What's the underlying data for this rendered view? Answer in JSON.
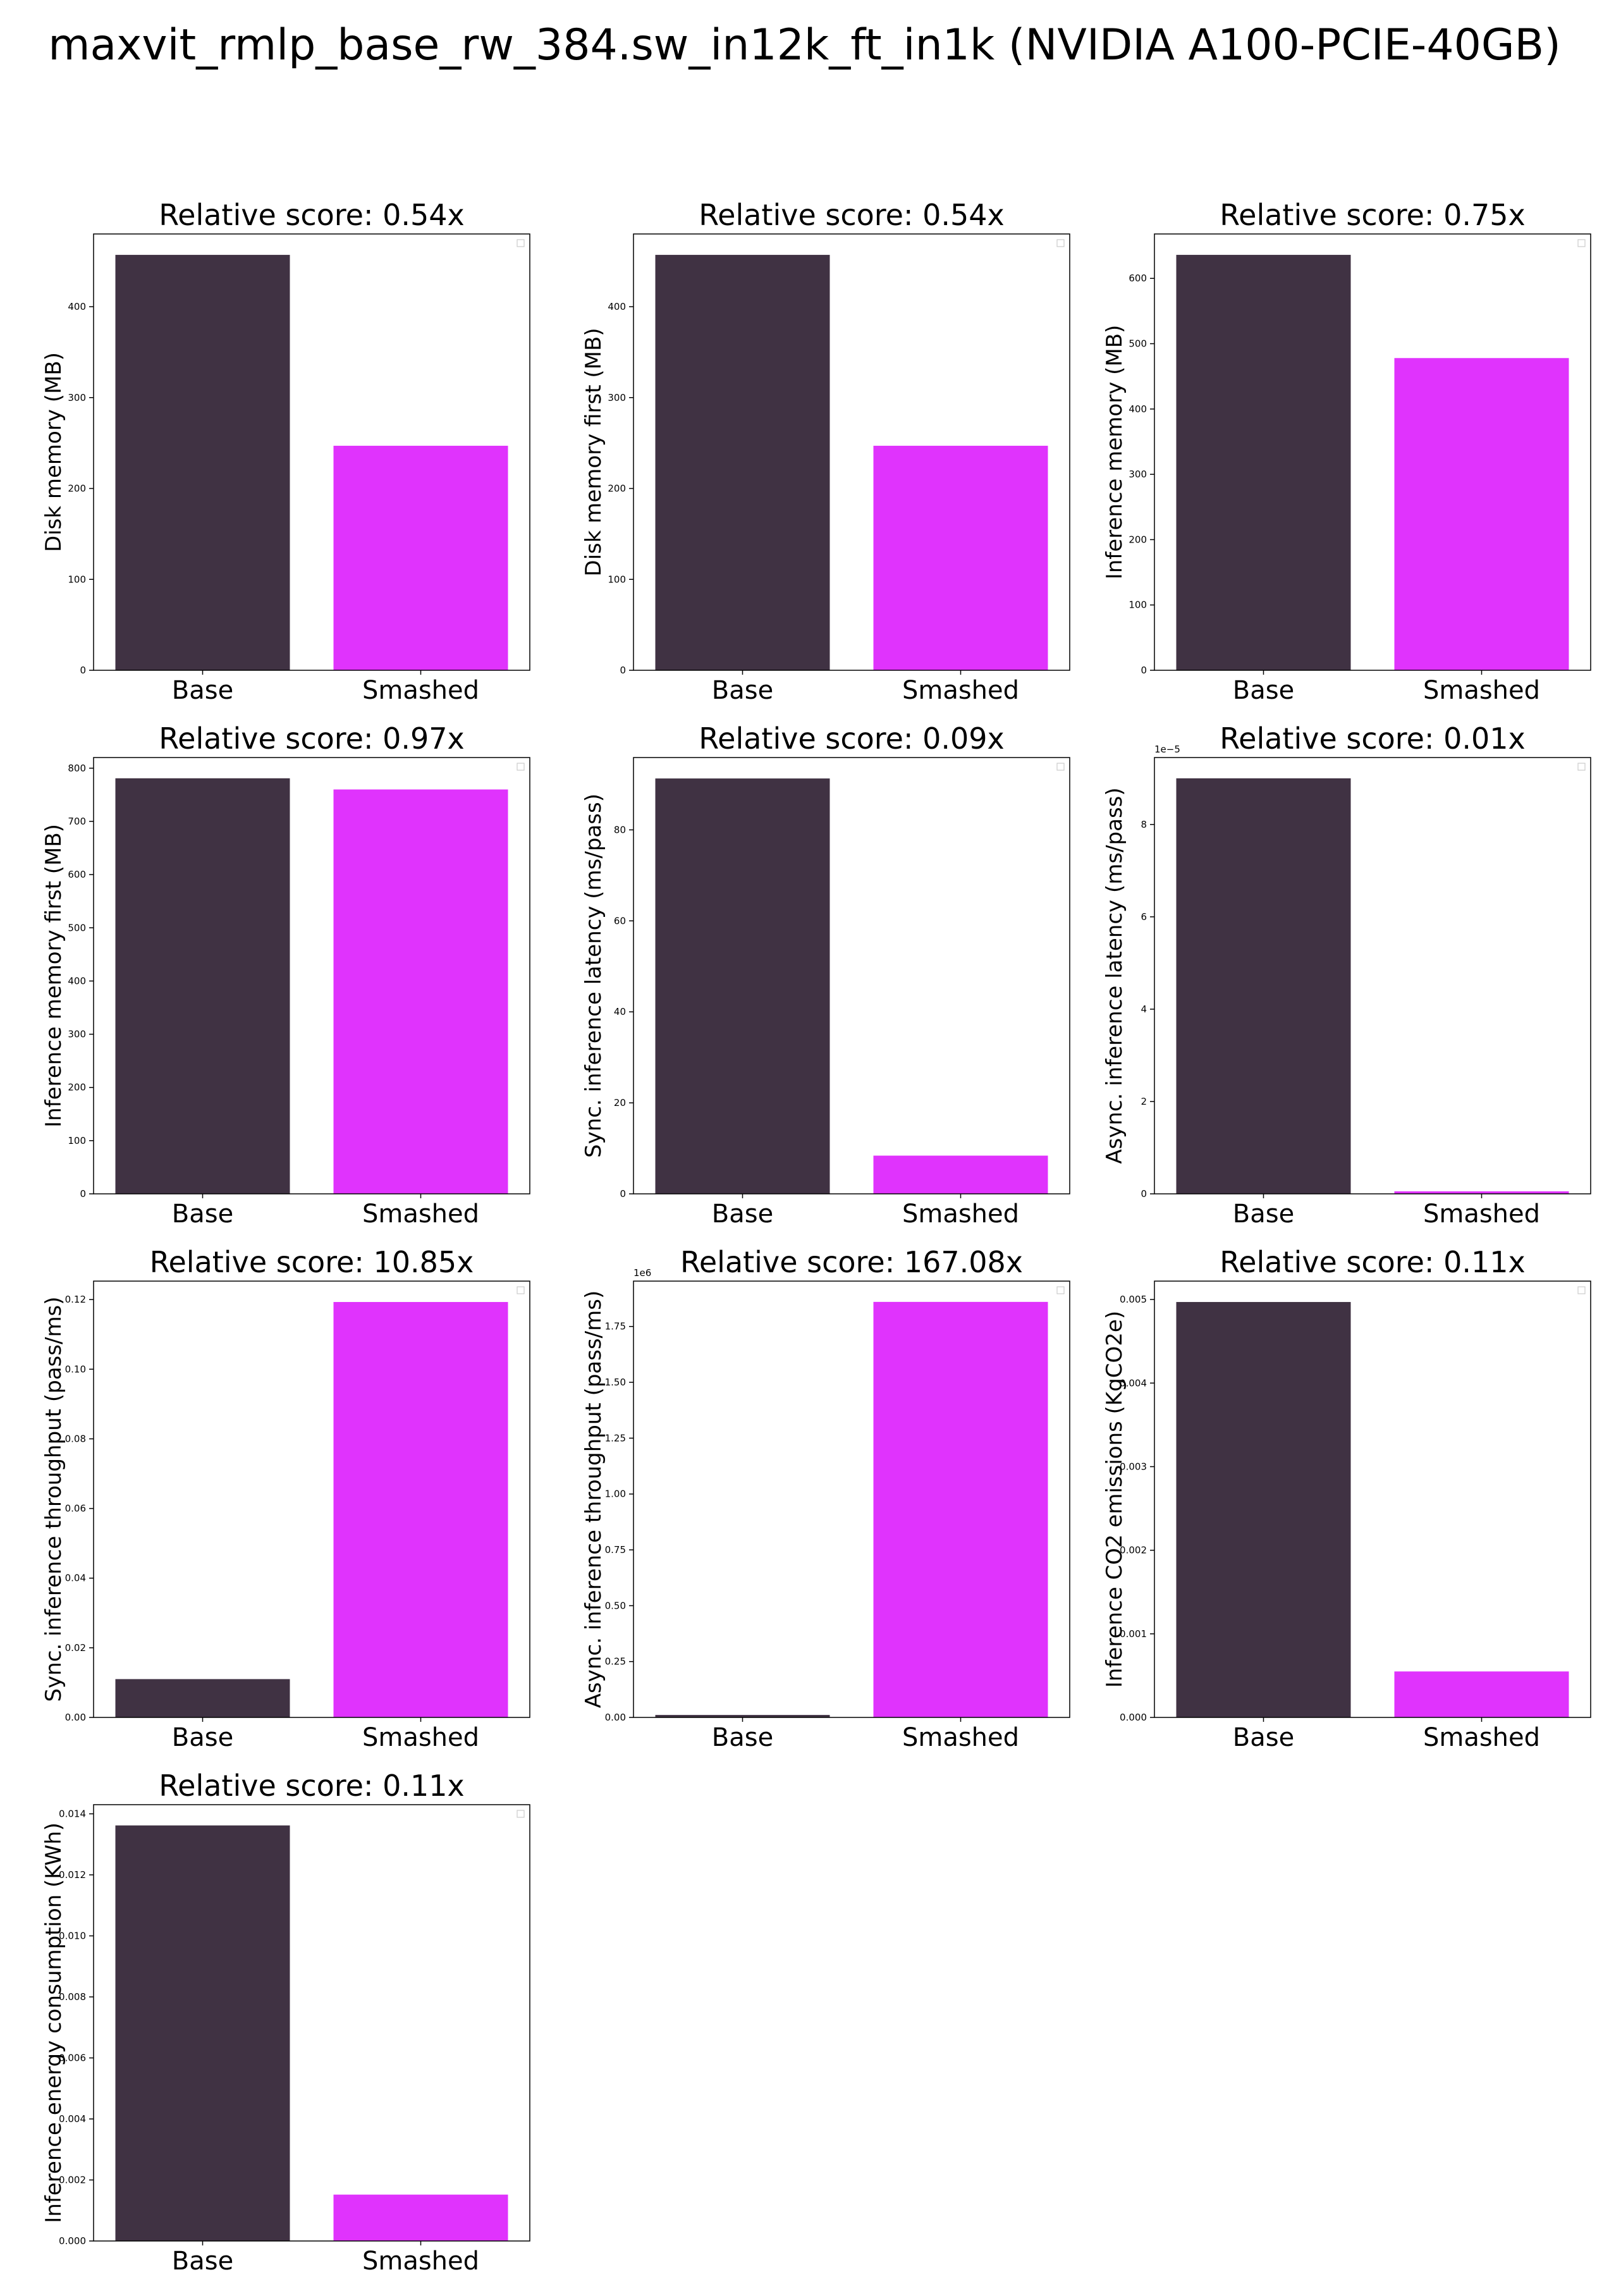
{
  "figure": {
    "title": "maxvit_rmlp_base_rw_384.sw_in12k_ft_in1k (NVIDIA A100-PCIE-40GB)"
  },
  "colors": {
    "base": "#403243",
    "smashed": "#e033fd",
    "axis": "#000000"
  },
  "chart_data": [
    {
      "type": "bar",
      "title": "Relative score: 0.54x",
      "categories": [
        "Base",
        "Smashed"
      ],
      "values": [
        457,
        247
      ],
      "xlabel": "",
      "ylabel": "Disk memory (MB)",
      "ylim": [
        0,
        480
      ],
      "yticks": [
        0,
        100,
        200,
        300,
        400
      ],
      "ytick_labels": [
        "0",
        "100",
        "200",
        "300",
        "400"
      ],
      "offset_label": ""
    },
    {
      "type": "bar",
      "title": "Relative score: 0.54x",
      "categories": [
        "Base",
        "Smashed"
      ],
      "values": [
        457,
        247
      ],
      "xlabel": "",
      "ylabel": "Disk memory first (MB)",
      "ylim": [
        0,
        480
      ],
      "yticks": [
        0,
        100,
        200,
        300,
        400
      ],
      "ytick_labels": [
        "0",
        "100",
        "200",
        "300",
        "400"
      ],
      "offset_label": ""
    },
    {
      "type": "bar",
      "title": "Relative score: 0.75x",
      "categories": [
        "Base",
        "Smashed"
      ],
      "values": [
        636,
        478
      ],
      "xlabel": "",
      "ylabel": "Inference memory (MB)",
      "ylim": [
        0,
        668
      ],
      "yticks": [
        0,
        100,
        200,
        300,
        400,
        500,
        600
      ],
      "ytick_labels": [
        "0",
        "100",
        "200",
        "300",
        "400",
        "500",
        "600"
      ],
      "offset_label": ""
    },
    {
      "type": "bar",
      "title": "Relative score: 0.97x",
      "categories": [
        "Base",
        "Smashed"
      ],
      "values": [
        781,
        760
      ],
      "xlabel": "",
      "ylabel": "Inference memory first (MB)",
      "ylim": [
        0,
        820
      ],
      "yticks": [
        0,
        100,
        200,
        300,
        400,
        500,
        600,
        700,
        800
      ],
      "ytick_labels": [
        "0",
        "100",
        "200",
        "300",
        "400",
        "500",
        "600",
        "700",
        "800"
      ],
      "offset_label": ""
    },
    {
      "type": "bar",
      "title": "Relative score: 0.09x",
      "categories": [
        "Base",
        "Smashed"
      ],
      "values": [
        91.3,
        8.4
      ],
      "xlabel": "",
      "ylabel": "Sync. inference latency (ms/pass)",
      "ylim": [
        0,
        95.9
      ],
      "yticks": [
        0,
        20,
        40,
        60,
        80
      ],
      "ytick_labels": [
        "0",
        "20",
        "40",
        "60",
        "80"
      ],
      "offset_label": ""
    },
    {
      "type": "bar",
      "title": "Relative score: 0.01x",
      "categories": [
        "Base",
        "Smashed"
      ],
      "values": [
        9.0,
        0.054
      ],
      "xlabel": "",
      "ylabel": "Async. inference latency (ms/pass)",
      "ylim": [
        0,
        9.45
      ],
      "yticks": [
        0,
        2,
        4,
        6,
        8
      ],
      "ytick_labels": [
        "0",
        "2",
        "4",
        "6",
        "8"
      ],
      "offset_label": "1e−5"
    },
    {
      "type": "bar",
      "title": "Relative score: 10.85x",
      "categories": [
        "Base",
        "Smashed"
      ],
      "values": [
        0.011,
        0.1193
      ],
      "xlabel": "",
      "ylabel": "Sync. inference throughput (pass/ms)",
      "ylim": [
        0,
        0.1253
      ],
      "yticks": [
        0,
        0.02,
        0.04,
        0.06,
        0.08,
        0.1,
        0.12
      ],
      "ytick_labels": [
        "0.00",
        "0.02",
        "0.04",
        "0.06",
        "0.08",
        "0.10",
        "0.12"
      ],
      "offset_label": ""
    },
    {
      "type": "bar",
      "title": "Relative score: 167.08x",
      "categories": [
        "Base",
        "Smashed"
      ],
      "values": [
        0.011,
        1.86
      ],
      "xlabel": "",
      "ylabel": "Async. inference throughput (pass/ms)",
      "ylim": [
        0,
        1.953
      ],
      "yticks": [
        0,
        0.25,
        0.5,
        0.75,
        1.0,
        1.25,
        1.5,
        1.75
      ],
      "ytick_labels": [
        "0.00",
        "0.25",
        "0.50",
        "0.75",
        "1.00",
        "1.25",
        "1.50",
        "1.75"
      ],
      "offset_label": "1e6"
    },
    {
      "type": "bar",
      "title": "Relative score: 0.11x",
      "categories": [
        "Base",
        "Smashed"
      ],
      "values": [
        0.00497,
        0.00055
      ],
      "xlabel": "",
      "ylabel": "Inference CO2 emissions (KgCO2e)",
      "ylim": [
        0,
        0.00522
      ],
      "yticks": [
        0,
        0.001,
        0.002,
        0.003,
        0.004,
        0.005
      ],
      "ytick_labels": [
        "0.000",
        "0.001",
        "0.002",
        "0.003",
        "0.004",
        "0.005"
      ],
      "offset_label": ""
    },
    {
      "type": "bar",
      "title": "Relative score: 0.11x",
      "categories": [
        "Base",
        "Smashed"
      ],
      "values": [
        0.01362,
        0.00152
      ],
      "xlabel": "",
      "ylabel": "Inference energy consumption (KWh)",
      "ylim": [
        0,
        0.0143
      ],
      "yticks": [
        0,
        0.002,
        0.004,
        0.006,
        0.008,
        0.01,
        0.012,
        0.014
      ],
      "ytick_labels": [
        "0.000",
        "0.002",
        "0.004",
        "0.006",
        "0.008",
        "0.010",
        "0.012",
        "0.014"
      ],
      "offset_label": ""
    }
  ]
}
